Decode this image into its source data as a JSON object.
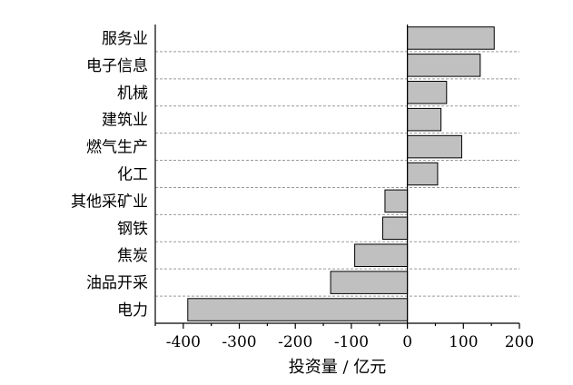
{
  "chart_data": {
    "type": "bar",
    "orientation": "horizontal",
    "categories": [
      "服务业",
      "电子信息",
      "机械",
      "建筑业",
      "燃气生产",
      "化工",
      "其他采矿业",
      "钢铁",
      "焦炭",
      "油品开采",
      "电力"
    ],
    "values": [
      155,
      130,
      70,
      60,
      97,
      54,
      -40,
      -44,
      -94,
      -137,
      -392
    ],
    "xlabel": "投资量 / 亿元",
    "ylabel": "",
    "xlim": [
      -450,
      200
    ],
    "xticks": [
      -400,
      -300,
      -200,
      -100,
      0,
      100,
      200
    ],
    "xtick_labels": [
      "-400",
      "-300",
      "-200",
      "-100",
      "0",
      "100",
      "200"
    ],
    "grid": "horizontal dashed",
    "colors": {
      "bar": "#c0c0c0",
      "grid": "#9a9a9a"
    }
  }
}
